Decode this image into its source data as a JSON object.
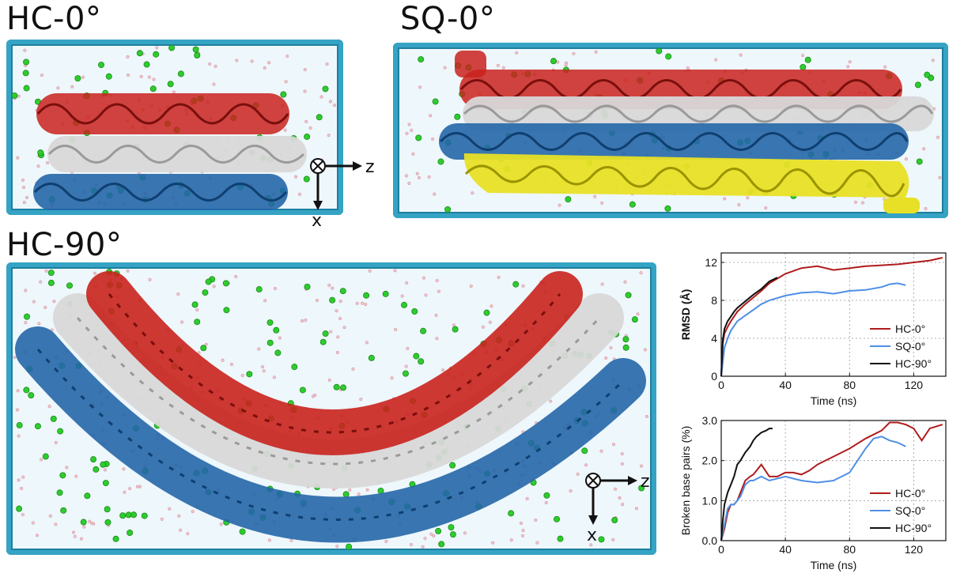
{
  "figure": {
    "panel_a_title": "HC-0°",
    "panel_b_title": "SQ-0°",
    "panel_c_title": "HC-90°",
    "axis_z": "z",
    "axis_x": "x"
  },
  "colors": {
    "hc0": "#b01c1c",
    "sq0": "#4f8fe6",
    "hc90": "#111111",
    "helix_red": "#c9221d",
    "helix_white": "#d8d8d8",
    "helix_blue": "#2466a8",
    "helix_yellow": "#e8e026",
    "ion_green": "#2ecc2e",
    "box_cyan": "#35a3c4"
  },
  "chart_data": [
    {
      "type": "line",
      "title": "",
      "xlabel": "Time (ns)",
      "ylabel": "RMSD (Å)",
      "xlim": [
        0,
        140
      ],
      "ylim": [
        0,
        13
      ],
      "xticks": [
        "0",
        "40",
        "80",
        "120"
      ],
      "yticks": [
        "0",
        "4",
        "8",
        "12"
      ],
      "grid": true,
      "legend": "bottom-right",
      "series": [
        {
          "name": "HC-0°",
          "color": "#b01c1c",
          "x": [
            0,
            1,
            2,
            4,
            6,
            8,
            10,
            15,
            20,
            25,
            30,
            35,
            40,
            50,
            60,
            70,
            80,
            90,
            100,
            110,
            120,
            130,
            138
          ],
          "y": [
            0,
            3.5,
            4.5,
            5.2,
            5.8,
            6.3,
            6.8,
            7.6,
            8.3,
            9.0,
            9.8,
            10.3,
            10.8,
            11.4,
            11.6,
            11.2,
            11.4,
            11.6,
            11.7,
            11.8,
            12.0,
            12.2,
            12.5
          ]
        },
        {
          "name": "SQ-0°",
          "color": "#4f8fe6",
          "x": [
            0,
            1,
            2,
            4,
            6,
            8,
            10,
            15,
            20,
            25,
            30,
            40,
            50,
            60,
            70,
            80,
            90,
            100,
            105,
            110,
            115
          ],
          "y": [
            0,
            1.5,
            3.0,
            4.0,
            4.8,
            5.3,
            5.8,
            6.4,
            7.0,
            7.6,
            8.0,
            8.5,
            8.8,
            8.9,
            8.7,
            9.0,
            9.1,
            9.4,
            9.7,
            9.8,
            9.6
          ]
        },
        {
          "name": "HC-90°",
          "color": "#111111",
          "x": [
            0,
            1,
            2,
            4,
            6,
            8,
            10,
            15,
            20,
            25,
            30,
            35
          ],
          "y": [
            0,
            3.8,
            5.0,
            5.8,
            6.3,
            6.8,
            7.2,
            7.9,
            8.6,
            9.2,
            10.0,
            10.4
          ]
        }
      ]
    },
    {
      "type": "line",
      "title": "",
      "xlabel": "Time (ns)",
      "ylabel": "Broken base pairs (%)",
      "xlim": [
        0,
        140
      ],
      "ylim": [
        0,
        3.0
      ],
      "xticks": [
        "0",
        "40",
        "80",
        "120"
      ],
      "yticks": [
        "0.0",
        "1.0",
        "2.0",
        "3.0"
      ],
      "grid": true,
      "legend": "bottom-right",
      "series": [
        {
          "name": "HC-0°",
          "color": "#b01c1c",
          "x": [
            0,
            2,
            4,
            6,
            8,
            10,
            12,
            15,
            18,
            20,
            25,
            30,
            35,
            40,
            45,
            50,
            55,
            60,
            70,
            80,
            90,
            100,
            105,
            110,
            115,
            120,
            125,
            130,
            138
          ],
          "y": [
            0,
            0.3,
            0.7,
            0.9,
            0.9,
            1.0,
            1.2,
            1.5,
            1.6,
            1.65,
            1.9,
            1.6,
            1.6,
            1.7,
            1.7,
            1.65,
            1.75,
            1.9,
            2.1,
            2.3,
            2.55,
            2.75,
            2.95,
            2.95,
            2.9,
            2.8,
            2.5,
            2.8,
            2.9
          ]
        },
        {
          "name": "SQ-0°",
          "color": "#4f8fe6",
          "x": [
            0,
            2,
            4,
            6,
            8,
            10,
            12,
            15,
            18,
            20,
            25,
            30,
            40,
            50,
            60,
            70,
            80,
            85,
            90,
            95,
            100,
            105,
            110,
            115
          ],
          "y": [
            0,
            0.4,
            0.8,
            0.9,
            0.9,
            1.0,
            1.1,
            1.4,
            1.5,
            1.5,
            1.6,
            1.5,
            1.6,
            1.5,
            1.45,
            1.5,
            1.7,
            2.0,
            2.3,
            2.55,
            2.6,
            2.5,
            2.45,
            2.35
          ]
        },
        {
          "name": "HC-90°",
          "color": "#111111",
          "x": [
            0,
            1,
            2,
            4,
            6,
            8,
            10,
            12,
            15,
            18,
            20,
            22,
            25,
            28,
            30,
            32
          ],
          "y": [
            0,
            0.5,
            0.9,
            1.2,
            1.4,
            1.6,
            1.9,
            2.0,
            2.2,
            2.35,
            2.5,
            2.6,
            2.7,
            2.75,
            2.8,
            2.8
          ]
        }
      ]
    }
  ]
}
